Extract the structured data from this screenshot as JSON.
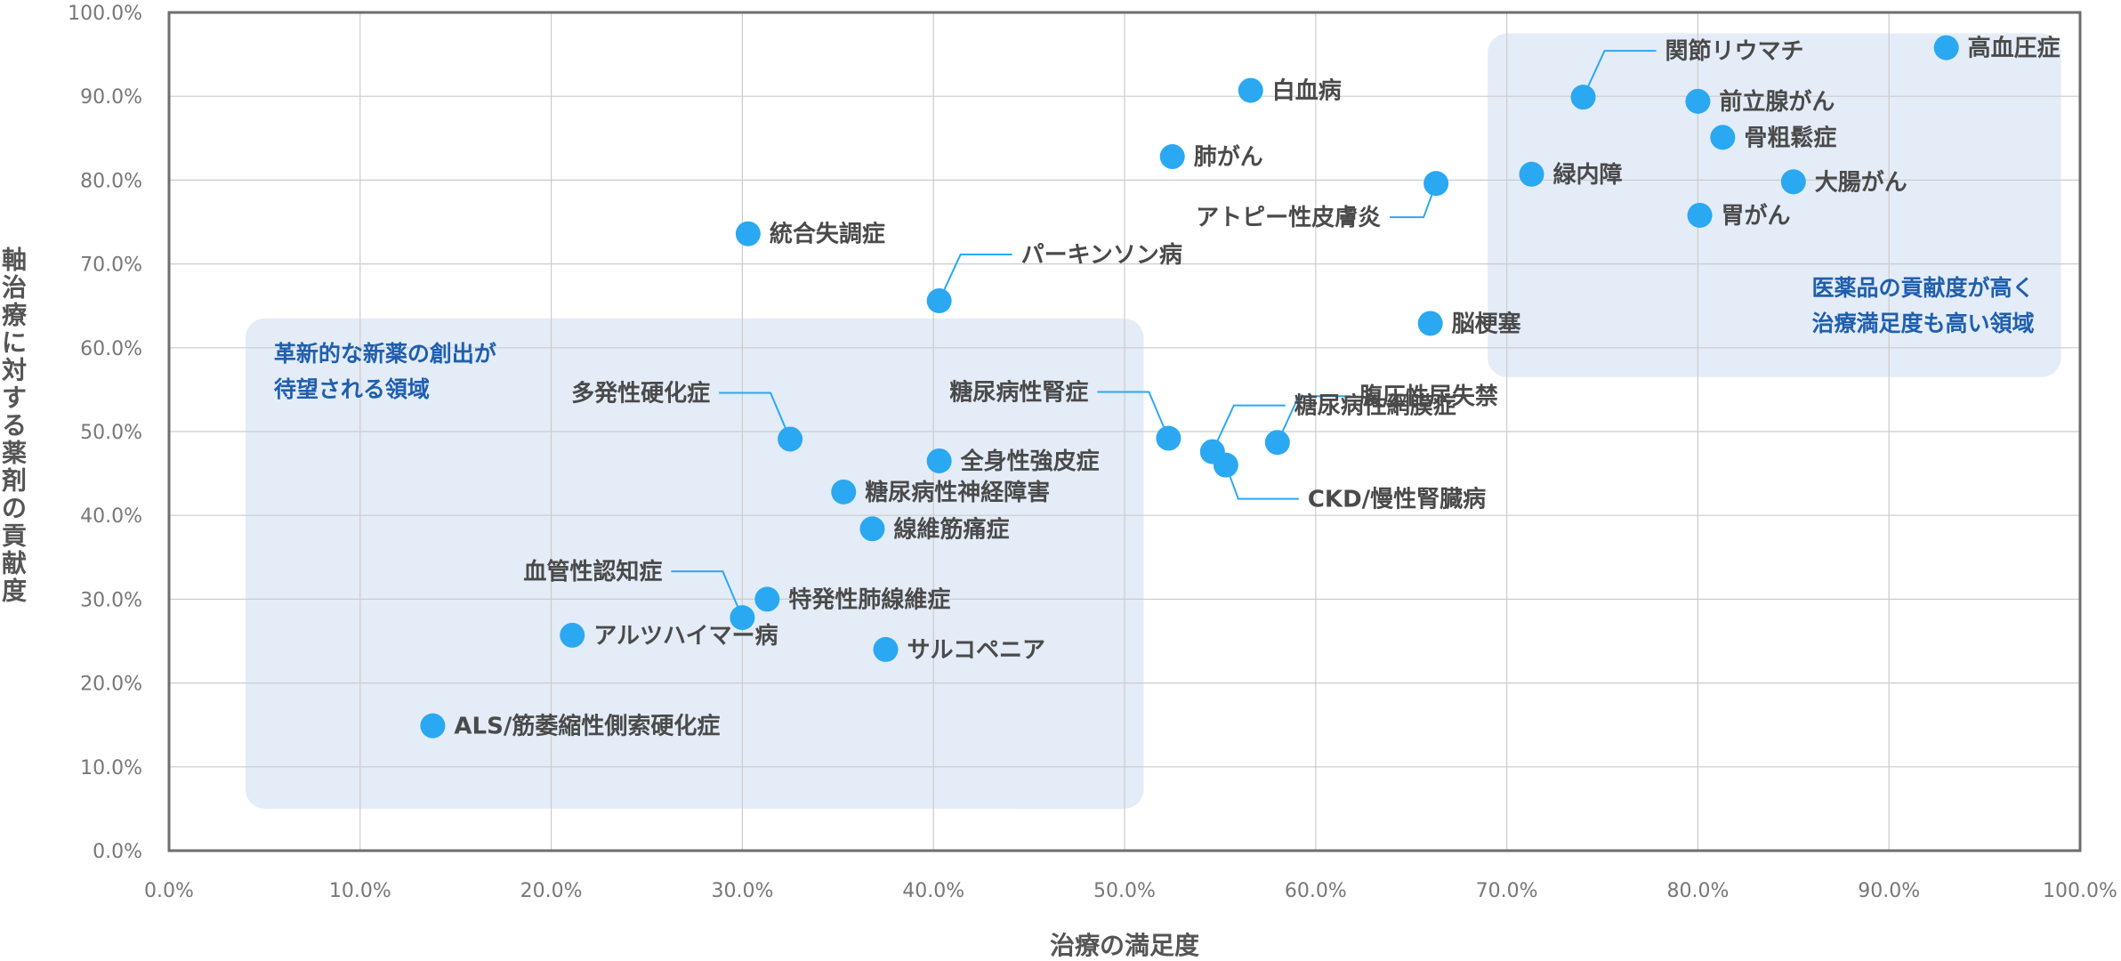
{
  "chart_data": {
    "type": "scatter",
    "xlabel": "治療の満足度",
    "ylabel": "軸治療に対する薬剤の貢献度",
    "xlim": [
      0,
      100
    ],
    "ylim": [
      0,
      100
    ],
    "x_ticks": [
      "0.0%",
      "10.0%",
      "20.0%",
      "30.0%",
      "40.0%",
      "50.0%",
      "60.0%",
      "70.0%",
      "80.0%",
      "90.0%",
      "100.0%"
    ],
    "y_ticks": [
      "0.0%",
      "10.0%",
      "20.0%",
      "30.0%",
      "40.0%",
      "50.0%",
      "60.0%",
      "70.0%",
      "80.0%",
      "90.0%",
      "100.0%"
    ],
    "grid": true,
    "colors": {
      "point": "#2aa8f2",
      "region_fill": "#e4ecf7",
      "region_text": "#1f5fae",
      "grid": "#cccccc",
      "leader": "#2aa8f2"
    },
    "regions": [
      {
        "label_lines": [
          "革新的な新薬の創出が",
          "待望される領域"
        ],
        "x_range": [
          4,
          51
        ],
        "y_range": [
          5,
          63.5
        ],
        "label_anchor": "top-left"
      },
      {
        "label_lines": [
          "医薬品の貢献度が高く",
          "治療満足度も高い領域"
        ],
        "x_range": [
          69,
          99
        ],
        "y_range": [
          56.5,
          97.5
        ],
        "label_anchor": "bottom-right"
      }
    ],
    "points": [
      {
        "label": "高血圧症",
        "x": 93.0,
        "y": 95.8,
        "label_position": "right"
      },
      {
        "label": "関節リウマチ",
        "x": 74.0,
        "y": 89.9,
        "label_position": "leader-up-right"
      },
      {
        "label": "前立腺がん",
        "x": 80.0,
        "y": 89.4,
        "label_position": "right"
      },
      {
        "label": "骨粗鬆症",
        "x": 81.3,
        "y": 85.1,
        "label_position": "right"
      },
      {
        "label": "緑内障",
        "x": 71.3,
        "y": 80.7,
        "label_position": "right"
      },
      {
        "label": "大腸がん",
        "x": 85.0,
        "y": 79.8,
        "label_position": "right"
      },
      {
        "label": "胃がん",
        "x": 80.1,
        "y": 75.8,
        "label_position": "right"
      },
      {
        "label": "白血病",
        "x": 56.6,
        "y": 90.7,
        "label_position": "right"
      },
      {
        "label": "肺がん",
        "x": 52.5,
        "y": 82.8,
        "label_position": "right"
      },
      {
        "label": "アトピー性皮膚炎",
        "x": 66.3,
        "y": 79.6,
        "label_position": "leader-down-left"
      },
      {
        "label": "統合失調症",
        "x": 30.3,
        "y": 73.6,
        "label_position": "right"
      },
      {
        "label": "パーキンソン病",
        "x": 40.3,
        "y": 65.6,
        "label_position": "leader-up-right"
      },
      {
        "label": "脳梗塞",
        "x": 66.0,
        "y": 62.9,
        "label_position": "right"
      },
      {
        "label": "糖尿病性網膜症",
        "x": 54.6,
        "y": 47.6,
        "label_position": "leader-up-right"
      },
      {
        "label": "腹圧性尿失禁",
        "x": 58.0,
        "y": 48.7,
        "label_position": "leader-up-right"
      },
      {
        "label": "CKD/慢性腎臓病",
        "x": 55.3,
        "y": 46.0,
        "label_position": "leader-down-right"
      },
      {
        "label": "糖尿病性腎症",
        "x": 52.3,
        "y": 49.2,
        "label_position": "leader-up-left"
      },
      {
        "label": "多発性硬化症",
        "x": 32.5,
        "y": 49.1,
        "label_position": "leader-up-left"
      },
      {
        "label": "全身性強皮症",
        "x": 40.3,
        "y": 46.5,
        "label_position": "right"
      },
      {
        "label": "糖尿病性神経障害",
        "x": 35.3,
        "y": 42.8,
        "label_position": "right"
      },
      {
        "label": "線維筋痛症",
        "x": 36.8,
        "y": 38.4,
        "label_position": "right"
      },
      {
        "label": "血管性認知症",
        "x": 30.0,
        "y": 27.8,
        "label_position": "leader-up-left"
      },
      {
        "label": "特発性肺線維症",
        "x": 31.3,
        "y": 30.0,
        "label_position": "right"
      },
      {
        "label": "アルツハイマー病",
        "x": 21.1,
        "y": 25.7,
        "label_position": "right"
      },
      {
        "label": "サルコペニア",
        "x": 37.5,
        "y": 24.0,
        "label_position": "right"
      },
      {
        "label": "ALS/筋萎縮性側索硬化症",
        "x": 13.8,
        "y": 14.9,
        "label_position": "right"
      }
    ]
  }
}
